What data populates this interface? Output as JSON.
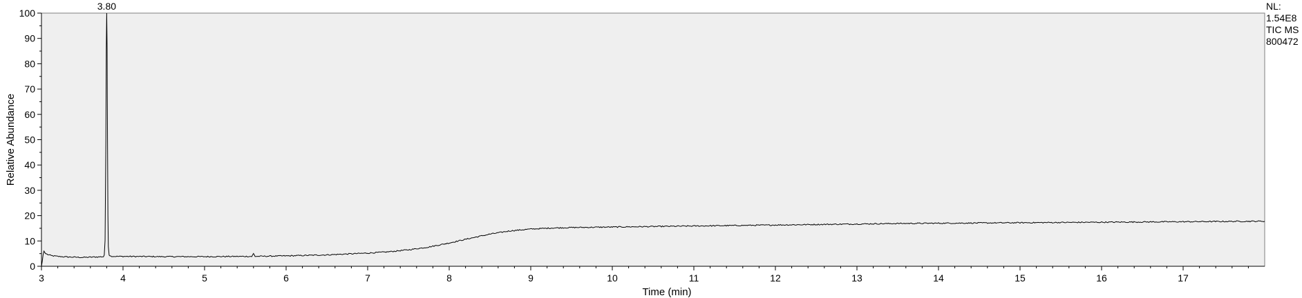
{
  "chart_data": {
    "type": "line",
    "title": "",
    "xlabel": "Time (min)",
    "ylabel": "Relative Abundance",
    "xlim": [
      3.0,
      18.0
    ],
    "ylim": [
      0,
      100
    ],
    "x_ticks": [
      3,
      4,
      5,
      6,
      7,
      8,
      9,
      10,
      11,
      12,
      13,
      14,
      15,
      16,
      17
    ],
    "y_ticks": [
      0,
      10,
      20,
      30,
      40,
      50,
      60,
      70,
      80,
      90,
      100
    ],
    "grid": false,
    "background": "#efefef",
    "line_color": "#000000",
    "peak_annotations": [
      {
        "x": 3.8,
        "y": 100,
        "label": "3.80"
      }
    ],
    "side_info": [
      "NL:",
      "1.54E8",
      "TIC  MS",
      "800472"
    ],
    "series": [
      {
        "points": [
          [
            3.0,
            0.0
          ],
          [
            3.01,
            2.0
          ],
          [
            3.02,
            4.5
          ],
          [
            3.03,
            6.0
          ],
          [
            3.05,
            5.0
          ],
          [
            3.08,
            4.6
          ],
          [
            3.12,
            4.2
          ],
          [
            3.2,
            3.9
          ],
          [
            3.3,
            3.7
          ],
          [
            3.4,
            3.6
          ],
          [
            3.5,
            3.5
          ],
          [
            3.6,
            3.6
          ],
          [
            3.7,
            3.7
          ],
          [
            3.76,
            3.8
          ],
          [
            3.77,
            4.5
          ],
          [
            3.78,
            10
          ],
          [
            3.785,
            30
          ],
          [
            3.79,
            50
          ],
          [
            3.795,
            86
          ],
          [
            3.8,
            100
          ],
          [
            3.805,
            86
          ],
          [
            3.81,
            50
          ],
          [
            3.815,
            20
          ],
          [
            3.82,
            8
          ],
          [
            3.83,
            4.5
          ],
          [
            3.85,
            4.0
          ],
          [
            3.9,
            3.9
          ],
          [
            4.0,
            3.9
          ],
          [
            4.5,
            3.8
          ],
          [
            5.0,
            3.8
          ],
          [
            5.5,
            3.9
          ],
          [
            5.58,
            3.9
          ],
          [
            5.6,
            5.0
          ],
          [
            5.62,
            3.9
          ],
          [
            5.8,
            4.0
          ],
          [
            6.0,
            4.1
          ],
          [
            6.5,
            4.5
          ],
          [
            7.0,
            5.2
          ],
          [
            7.25,
            5.7
          ],
          [
            7.5,
            6.5
          ],
          [
            7.75,
            7.6
          ],
          [
            8.0,
            9.2
          ],
          [
            8.25,
            11.0
          ],
          [
            8.5,
            12.7
          ],
          [
            8.75,
            14.0
          ],
          [
            9.0,
            14.7
          ],
          [
            9.25,
            15.1
          ],
          [
            9.5,
            15.3
          ],
          [
            10.0,
            15.5
          ],
          [
            10.5,
            15.7
          ],
          [
            11.0,
            15.9
          ],
          [
            11.5,
            16.1
          ],
          [
            12.0,
            16.3
          ],
          [
            12.5,
            16.5
          ],
          [
            13.0,
            16.7
          ],
          [
            13.5,
            16.9
          ],
          [
            14.0,
            17.0
          ],
          [
            14.5,
            17.1
          ],
          [
            15.0,
            17.2
          ],
          [
            15.5,
            17.3
          ],
          [
            16.0,
            17.4
          ],
          [
            16.5,
            17.5
          ],
          [
            17.0,
            17.6
          ],
          [
            17.5,
            17.7
          ],
          [
            18.0,
            17.8
          ]
        ]
      }
    ]
  }
}
